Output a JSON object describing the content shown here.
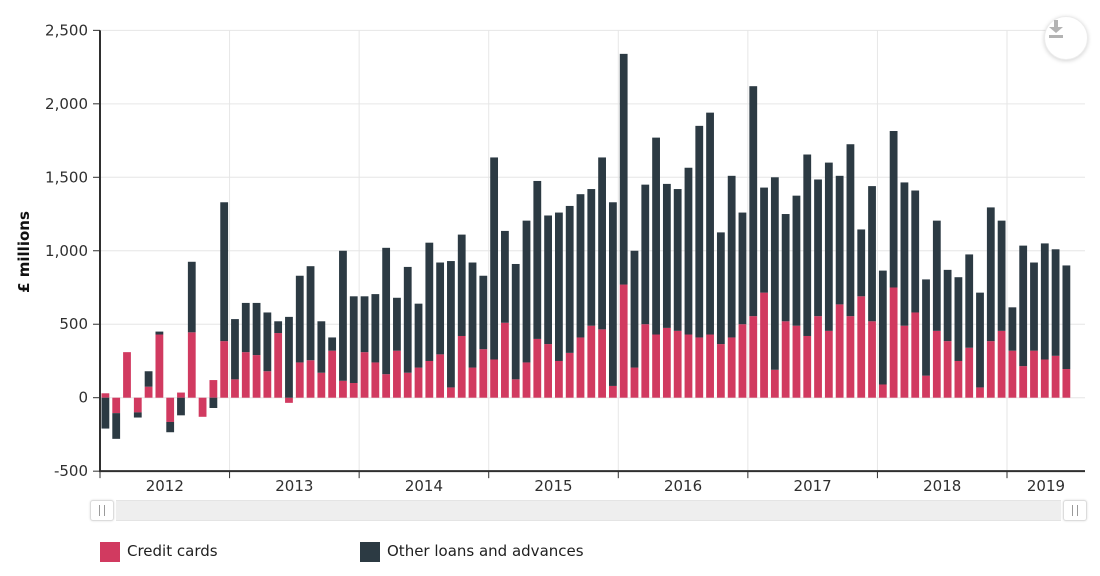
{
  "chart": {
    "y_axis": {
      "title": "£ millions",
      "tick_labels": [
        "2,500",
        "2,000",
        "1,500",
        "1,000",
        "500",
        "0",
        "-500"
      ],
      "tick_values": [
        2500,
        2000,
        1500,
        1000,
        500,
        0,
        -500
      ]
    },
    "x_axis": {
      "year_labels": [
        "2012",
        "2013",
        "2014",
        "2015",
        "2016",
        "2017",
        "2018",
        "2019"
      ]
    },
    "legend": [
      {
        "label": "Credit cards",
        "color": "#d13a60"
      },
      {
        "label": "Other loans and advances",
        "color": "#2c3a43"
      }
    ],
    "toolbar": {
      "download_icon": "download"
    },
    "colors": {
      "grid": "#e6e6e6",
      "axis": "#2f2f2f",
      "text": "#2f2f2f",
      "credit_cards": "#d13a60",
      "other_loans": "#2c3a43"
    }
  },
  "chart_data": {
    "type": "bar",
    "stacked": true,
    "title": "",
    "ylabel": "£ millions",
    "ylim": [
      -500,
      2500
    ],
    "y_tick_step": 500,
    "grid": true,
    "legend_position": "bottom",
    "frequency": "monthly",
    "first_bar": "2012-01",
    "x_axis_year_labels": [
      "2012",
      "2013",
      "2014",
      "2015",
      "2016",
      "2017",
      "2018",
      "2019"
    ],
    "series": [
      {
        "name": "Credit cards",
        "color": "#d13a60",
        "values": [
          30,
          -105,
          310,
          -100,
          75,
          430,
          -165,
          35,
          445,
          -130,
          120,
          385,
          125,
          310,
          290,
          180,
          440,
          -35,
          240,
          255,
          170,
          320,
          115,
          100,
          310,
          240,
          160,
          320,
          170,
          205,
          250,
          295,
          70,
          420,
          205,
          330,
          260,
          510,
          125,
          240,
          400,
          365,
          250,
          305,
          410,
          490,
          465,
          80,
          770,
          205,
          500,
          430,
          475,
          455,
          430,
          410,
          430,
          365,
          410,
          500,
          555,
          715,
          190,
          520,
          490,
          420,
          555,
          455,
          635,
          555,
          690,
          520,
          90,
          750,
          490,
          580,
          150,
          455,
          385,
          250,
          340,
          70,
          385,
          455,
          320,
          215,
          320,
          260,
          285,
          195
        ]
      },
      {
        "name": "Other loans and advances",
        "color": "#2c3a43",
        "values": [
          -210,
          -175,
          0,
          -35,
          105,
          20,
          -70,
          -120,
          480,
          0,
          -70,
          945,
          410,
          335,
          355,
          400,
          80,
          550,
          590,
          640,
          350,
          90,
          885,
          590,
          380,
          465,
          860,
          360,
          720,
          435,
          805,
          625,
          860,
          690,
          715,
          500,
          1375,
          625,
          785,
          965,
          1075,
          875,
          1010,
          1000,
          975,
          930,
          1170,
          1250,
          1570,
          795,
          950,
          1340,
          980,
          965,
          1135,
          1440,
          1510,
          760,
          1100,
          760,
          1565,
          715,
          1310,
          730,
          885,
          1235,
          930,
          1145,
          875,
          1170,
          455,
          920,
          775,
          1065,
          975,
          830,
          655,
          750,
          485,
          570,
          635,
          645,
          910,
          750,
          295,
          820,
          600,
          790,
          725,
          705
        ]
      }
    ]
  }
}
